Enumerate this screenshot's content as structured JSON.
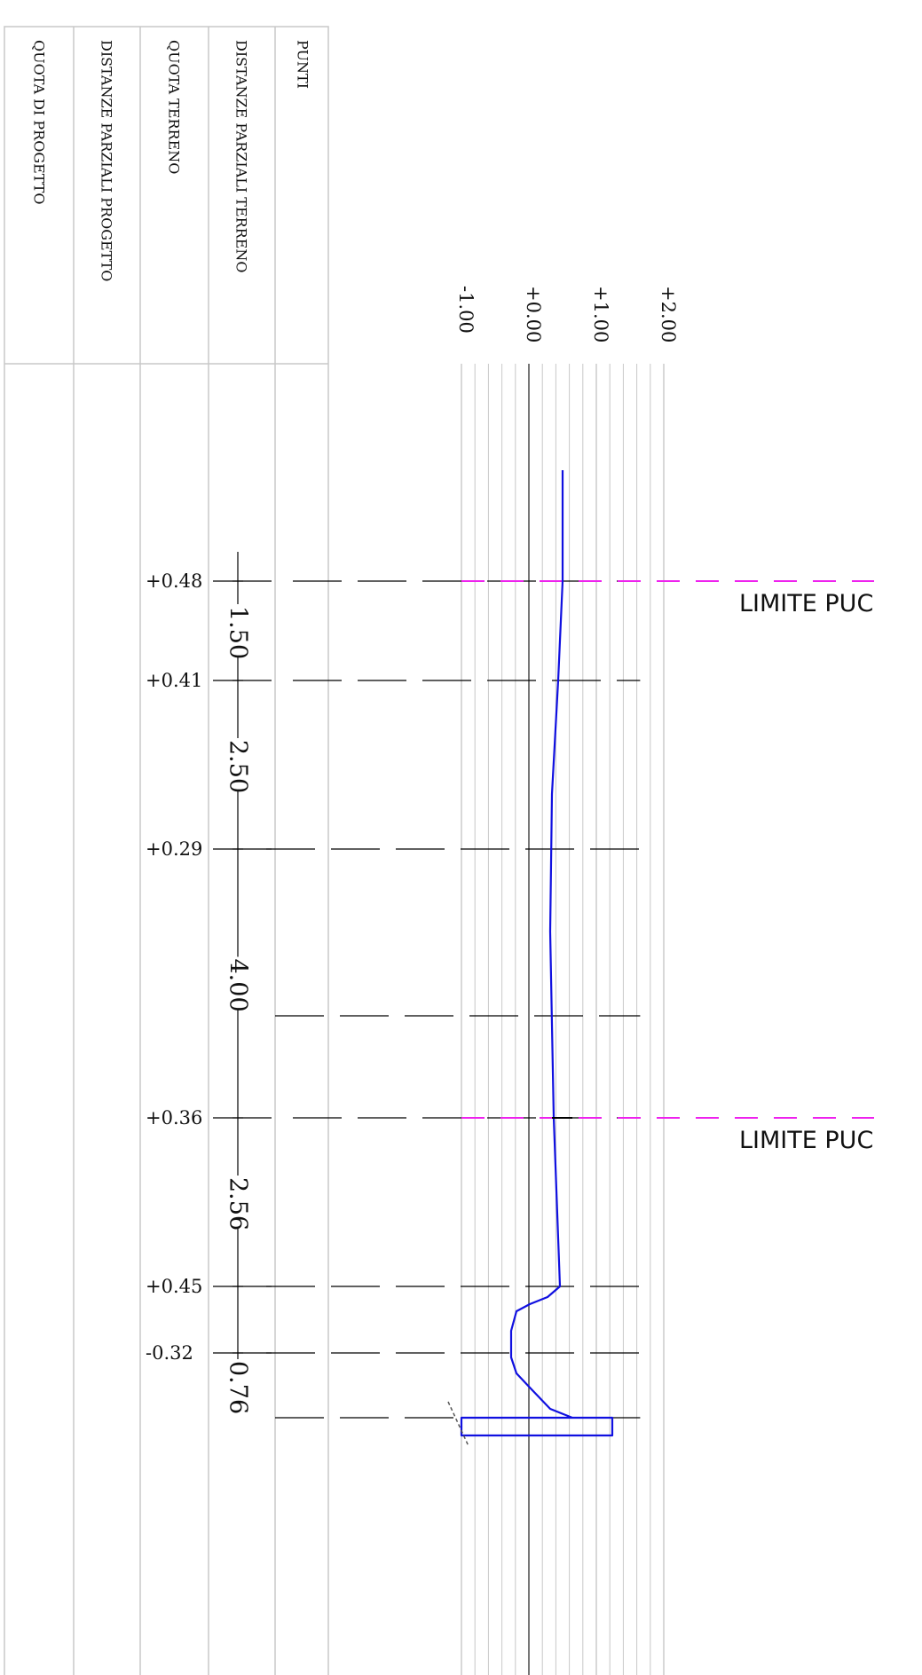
{
  "table": {
    "columns": [
      "QUOTA DI PROGETTO",
      "DISTANZE PARZIALI PROGETTO",
      "QUOTA TERRENO",
      "DISTANZE PARZIALI TERRENO",
      "PUNTI"
    ]
  },
  "elevation_scale": [
    "-1.00",
    "+0.00",
    "+1.00",
    "+2.00"
  ],
  "stations": [
    {
      "quota_terreno": "+0.48",
      "elevation": 0.48,
      "limit_label": "LIMITE   PUC"
    },
    {
      "quota_terreno": "+0.41",
      "elevation": 0.41
    },
    {
      "quota_terreno": "+0.29",
      "elevation": 0.29
    },
    {
      "quota_terreno": ""
    },
    {
      "quota_terreno": "+0.36",
      "elevation": 0.36,
      "limit_label": "LIMITE   PUC"
    },
    {
      "quota_terreno": "+0.45",
      "elevation": 0.45
    },
    {
      "quota_terreno": "-0.32",
      "elevation": -0.32
    },
    {
      "quota_terreno": ""
    }
  ],
  "partial_distances": [
    "1.50",
    "2.50",
    "4.00",
    "2.56",
    "0.76"
  ],
  "colors": {
    "profile": "#1010e0",
    "limit_line": "#ee22ee",
    "grid": "#c8c8c8",
    "zero_line": "#555555",
    "station_line": "#000000"
  }
}
